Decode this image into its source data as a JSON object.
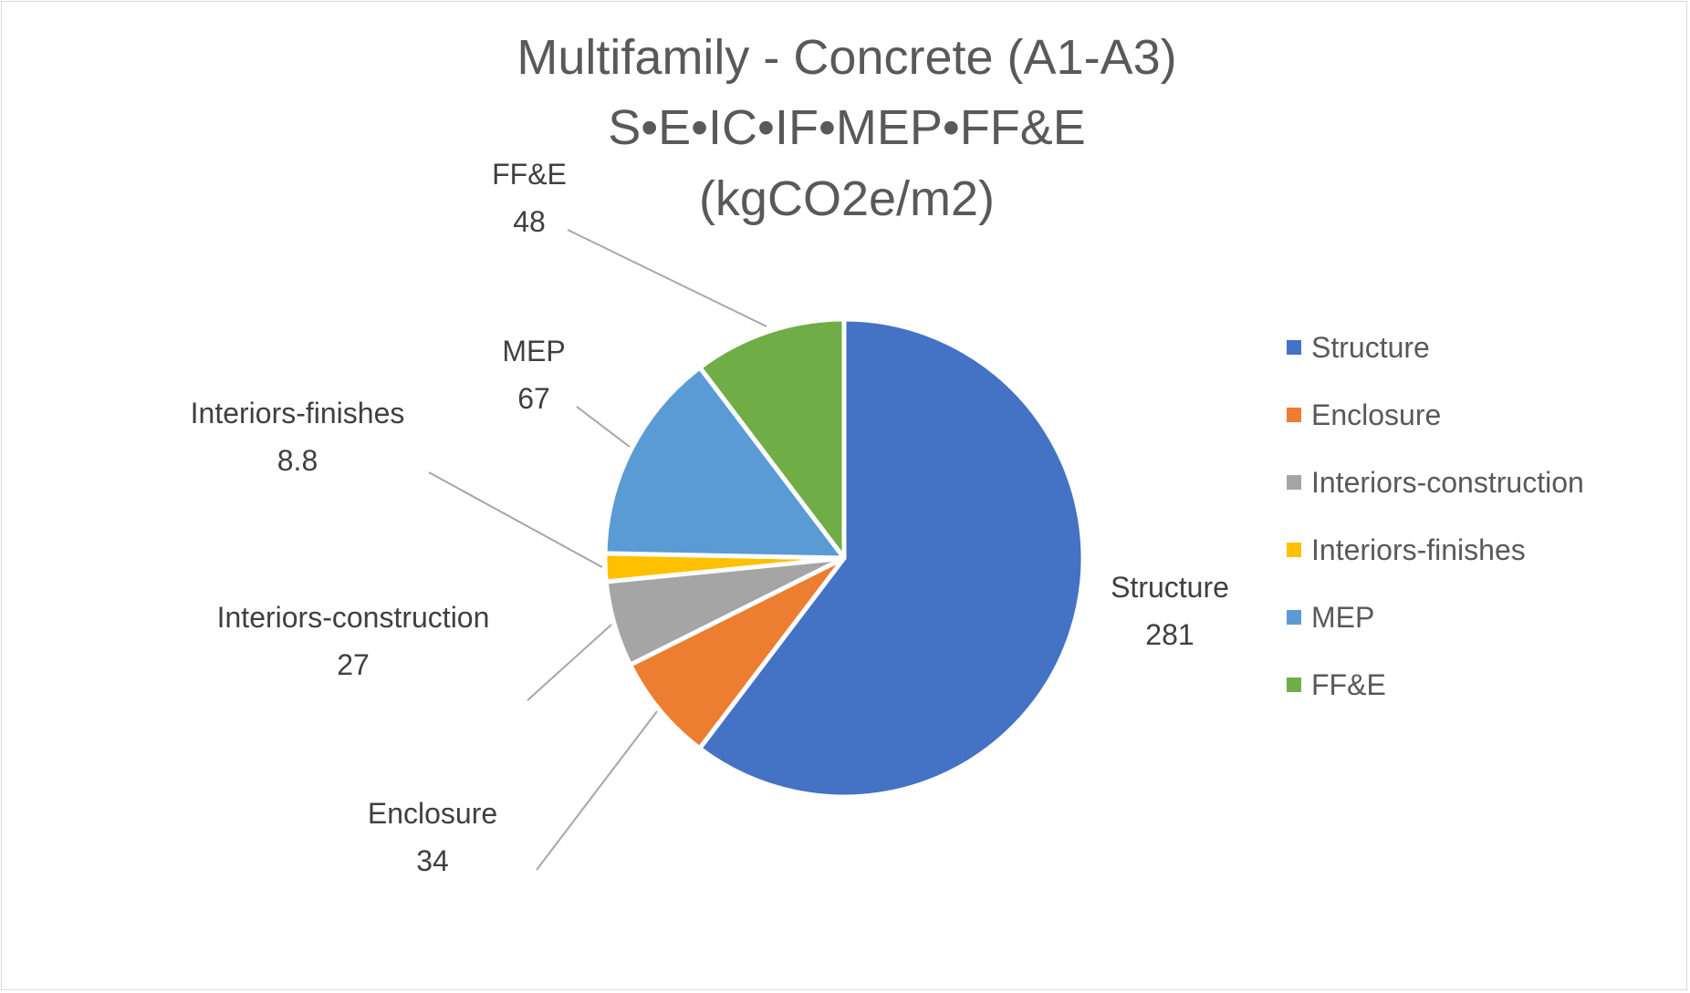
{
  "chart_data": {
    "type": "pie",
    "title_lines": [
      "Multifamily - Concrete (A1-A3)",
      "S•E•IC•IF•MEP•FF&E",
      "(kgCO2e/m2)"
    ],
    "categories": [
      "Structure",
      "Enclosure",
      "Interiors-construction",
      "Interiors-finishes",
      "MEP",
      "FF&E"
    ],
    "values": [
      281,
      34,
      27,
      8.8,
      67,
      48
    ],
    "value_labels": [
      "281",
      "34",
      "27",
      "8.8",
      "67",
      "48"
    ],
    "colors": [
      "#4472c4",
      "#ed7d31",
      "#a5a5a5",
      "#ffc000",
      "#5b9bd5",
      "#70ad47"
    ],
    "legend_position": "right",
    "start_angle_deg": 0,
    "direction": "clockwise"
  }
}
